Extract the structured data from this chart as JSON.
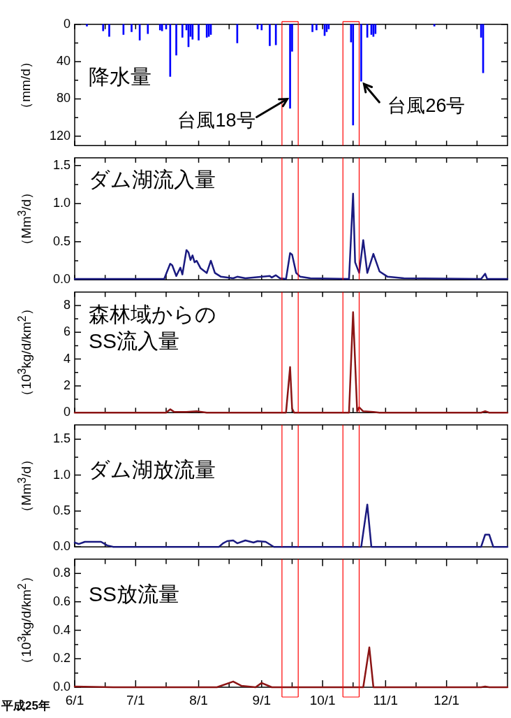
{
  "chart_data": [
    {
      "type": "bar",
      "title": "降水量",
      "ylabel": "（mm/d）",
      "color": "#0000ff",
      "tick_labels": "y",
      "grid": false,
      "x": [
        "--06-07",
        "--06-15",
        "--06-18",
        "--06-25",
        "--06-29",
        "--07-03",
        "--07-07",
        "--07-13",
        "--07-14",
        "--07-16",
        "--07-18",
        "--07-21",
        "--07-24",
        "--07-26",
        "--07-27",
        "--07-28",
        "--07-29",
        "--08-01",
        "--08-05",
        "--08-06",
        "--08-07",
        "--08-20",
        "--08-30",
        "--09-01",
        "--09-05",
        "--09-08",
        "--09-15",
        "--09-16",
        "--09-26",
        "--09-28",
        "--10-02",
        "--10-03",
        "--10-04",
        "--10-15",
        "--10-16",
        "--10-20",
        "--10-23",
        "--10-25",
        "--10-26",
        "--10-27",
        "--11-25",
        "--12-18",
        "--12-19"
      ],
      "values": [
        2,
        7,
        13,
        11,
        8,
        17,
        10,
        6,
        7,
        5,
        56,
        33,
        14,
        6,
        24,
        13,
        16,
        17,
        14,
        13,
        11,
        20,
        5,
        6,
        23,
        22,
        90,
        29,
        8,
        6,
        12,
        8,
        5,
        19,
        108,
        61,
        14,
        11,
        13,
        10,
        2,
        14,
        52
      ],
      "xlim": [
        "--06-01",
        "--12-31"
      ],
      "xticks": [
        {
          "value": "--06-01",
          "label": null
        },
        {
          "value": "--06-16",
          "label": null
        },
        {
          "value": "--07-01",
          "label": null
        },
        {
          "value": "--07-16",
          "label": null
        },
        {
          "value": "--08-01",
          "label": null
        },
        {
          "value": "--08-16",
          "label": null
        },
        {
          "value": "--09-01",
          "label": null
        },
        {
          "value": "--09-16",
          "label": null
        },
        {
          "value": "--10-01",
          "label": null
        },
        {
          "value": "--10-16",
          "label": null
        },
        {
          "value": "--11-01",
          "label": null
        },
        {
          "value": "--11-16",
          "label": null
        },
        {
          "value": "--12-01",
          "label": null
        },
        {
          "value": "--12-16",
          "label": null
        }
      ],
      "ylim": [
        130,
        0
      ],
      "yticks": [
        0,
        {
          "value": 20,
          "label": null
        },
        40,
        {
          "value": 60,
          "label": null
        },
        80,
        {
          "value": 100,
          "label": null
        },
        120
      ],
      "ref_lines": [
        {
          "axis": "x",
          "value": "--09-11",
          "color": "#ff0000"
        },
        {
          "axis": "x",
          "value": "--09-19",
          "color": "#ff0000"
        },
        {
          "axis": "x",
          "value": "--10-11",
          "color": "#ff0000"
        },
        {
          "axis": "x",
          "value": "--10-19",
          "color": "#ff0000"
        }
      ],
      "annotations": [
        {
          "text": "台風18号",
          "x": "--09-15",
          "y": 80
        },
        {
          "text": "台風26号",
          "x": "--10-20",
          "y": 61
        }
      ]
    },
    {
      "type": "line",
      "title": "ダム湖流入量",
      "ylabel": "（Mm$^{3}$/d）",
      "color": "#1a1a80",
      "marker": "none",
      "tick_labels": "y",
      "grid": false,
      "x": [
        "--06-01",
        "--07-15",
        "--07-18",
        "--07-19",
        "--07-21",
        "--07-23",
        "--07-24",
        "--07-26",
        "--07-27",
        "--07-28",
        "--07-29",
        "--07-30",
        "--07-31",
        "--08-02",
        "--08-05",
        "--08-07",
        "--08-09",
        "--08-12",
        "--08-18",
        "--08-20",
        "--08-24",
        "--09-05",
        "--09-06",
        "--09-08",
        "--09-10",
        "--09-13",
        "--09-15",
        "--09-16",
        "--09-18",
        "--09-20",
        "--09-25",
        "--10-14",
        "--10-16",
        "--10-17",
        "--10-19",
        "--10-21",
        "--10-23",
        "--10-26",
        "--10-29",
        "--11-02",
        "--11-10",
        "--12-18",
        "--12-20",
        "--12-21",
        "--12-31"
      ],
      "values": [
        0.01,
        0.01,
        0.21,
        0.19,
        0.05,
        0.16,
        0.07,
        0.39,
        0.36,
        0.26,
        0.32,
        0.23,
        0.25,
        0.15,
        0.09,
        0.25,
        0.09,
        0.04,
        0.02,
        0.04,
        0.02,
        0.05,
        0.03,
        0.06,
        0.02,
        0.01,
        0.35,
        0.33,
        0.09,
        0.04,
        0.02,
        0.01,
        1.13,
        0.23,
        0.09,
        0.52,
        0.09,
        0.34,
        0.11,
        0.04,
        0.02,
        0.01,
        0.08,
        0.01,
        0.01
      ],
      "xlim": [
        "--06-01",
        "--12-31"
      ],
      "xticks": [
        {
          "value": "--06-01",
          "label": null
        },
        {
          "value": "--06-16",
          "label": null
        },
        {
          "value": "--07-01",
          "label": null
        },
        {
          "value": "--07-16",
          "label": null
        },
        {
          "value": "--08-01",
          "label": null
        },
        {
          "value": "--08-16",
          "label": null
        },
        {
          "value": "--09-01",
          "label": null
        },
        {
          "value": "--09-16",
          "label": null
        },
        {
          "value": "--10-01",
          "label": null
        },
        {
          "value": "--10-16",
          "label": null
        },
        {
          "value": "--11-01",
          "label": null
        },
        {
          "value": "--11-16",
          "label": null
        },
        {
          "value": "--12-01",
          "label": null
        },
        {
          "value": "--12-16",
          "label": null
        }
      ],
      "ylim": [
        0,
        1.6
      ],
      "yticks": [
        {
          "value": 0,
          "label": "0.0"
        },
        {
          "value": 0.25,
          "label": null
        },
        {
          "value": 0.5,
          "label": "0.5"
        },
        {
          "value": 0.75,
          "label": null
        },
        {
          "value": 1,
          "label": "1.0"
        },
        {
          "value": 1.25,
          "label": null
        },
        {
          "value": 1.5,
          "label": "1.5"
        }
      ],
      "ref_lines": [
        {
          "axis": "x",
          "value": "--09-11",
          "color": "#ff0000"
        },
        {
          "axis": "x",
          "value": "--09-19",
          "color": "#ff0000"
        },
        {
          "axis": "x",
          "value": "--10-11",
          "color": "#ff0000"
        },
        {
          "axis": "x",
          "value": "--10-19",
          "color": "#ff0000"
        }
      ]
    },
    {
      "type": "line",
      "title": "森林域からの\nSS流入量",
      "ylabel": "（10$^{3}$kg/d/km$^{2}$）",
      "color": "#8b1414",
      "marker": "none",
      "tick_labels": "y",
      "grid": false,
      "x": [
        "--06-01",
        "--07-16",
        "--07-18",
        "--07-20",
        "--07-26",
        "--07-31",
        "--08-05",
        "--09-13",
        "--09-15",
        "--09-16",
        "--09-17",
        "--10-14",
        "--10-16",
        "--10-18",
        "--10-19",
        "--10-21",
        "--10-26",
        "--10-29",
        "--12-18",
        "--12-20",
        "--12-22",
        "--12-31"
      ],
      "values": [
        0,
        0,
        0.25,
        0.05,
        0.05,
        0.1,
        0,
        0,
        3.4,
        0.3,
        0,
        0,
        7.5,
        0.1,
        0.4,
        0.1,
        0.05,
        0,
        0,
        0.1,
        0,
        0
      ],
      "xlim": [
        "--06-01",
        "--12-31"
      ],
      "xticks": [
        {
          "value": "--06-01",
          "label": null
        },
        {
          "value": "--06-16",
          "label": null
        },
        {
          "value": "--07-01",
          "label": null
        },
        {
          "value": "--07-16",
          "label": null
        },
        {
          "value": "--08-01",
          "label": null
        },
        {
          "value": "--08-16",
          "label": null
        },
        {
          "value": "--09-01",
          "label": null
        },
        {
          "value": "--09-16",
          "label": null
        },
        {
          "value": "--10-01",
          "label": null
        },
        {
          "value": "--10-16",
          "label": null
        },
        {
          "value": "--11-01",
          "label": null
        },
        {
          "value": "--11-16",
          "label": null
        },
        {
          "value": "--12-01",
          "label": null
        },
        {
          "value": "--12-16",
          "label": null
        }
      ],
      "ylim": [
        0,
        9
      ],
      "yticks": [
        0,
        {
          "value": 1,
          "label": null
        },
        2,
        {
          "value": 3,
          "label": null
        },
        4,
        {
          "value": 5,
          "label": null
        },
        6,
        {
          "value": 7,
          "label": null
        },
        8
      ],
      "ref_lines": [
        {
          "axis": "x",
          "value": "--09-11",
          "color": "#ff0000"
        },
        {
          "axis": "x",
          "value": "--09-19",
          "color": "#ff0000"
        },
        {
          "axis": "x",
          "value": "--10-11",
          "color": "#ff0000"
        },
        {
          "axis": "x",
          "value": "--10-19",
          "color": "#ff0000"
        }
      ]
    },
    {
      "type": "line",
      "title": "ダム湖放流量",
      "ylabel": "（Mm$^{3}$/d）",
      "color": "#1a1a80",
      "marker": "none",
      "tick_labels": "y",
      "grid": false,
      "x": [
        "--06-01",
        "--06-03",
        "--06-06",
        "--06-14",
        "--06-17",
        "--06-20",
        "--08-11",
        "--08-13",
        "--08-15",
        "--08-18",
        "--08-20",
        "--08-24",
        "--08-28",
        "--08-30",
        "--09-03",
        "--09-07",
        "--10-20",
        "--10-23",
        "--10-25",
        "--12-18",
        "--12-20",
        "--12-22",
        "--12-24",
        "--12-31"
      ],
      "values": [
        0.06,
        0.04,
        0.07,
        0.07,
        0.02,
        0,
        0,
        0.05,
        0.08,
        0.09,
        0.05,
        0.09,
        0.06,
        0.08,
        0.07,
        0,
        0,
        0.59,
        0,
        0,
        0.17,
        0.17,
        0,
        0
      ],
      "xlim": [
        "--06-01",
        "--12-31"
      ],
      "xticks": [
        {
          "value": "--06-01",
          "label": null
        },
        {
          "value": "--06-16",
          "label": null
        },
        {
          "value": "--07-01",
          "label": null
        },
        {
          "value": "--07-16",
          "label": null
        },
        {
          "value": "--08-01",
          "label": null
        },
        {
          "value": "--08-16",
          "label": null
        },
        {
          "value": "--09-01",
          "label": null
        },
        {
          "value": "--09-16",
          "label": null
        },
        {
          "value": "--10-01",
          "label": null
        },
        {
          "value": "--10-16",
          "label": null
        },
        {
          "value": "--11-01",
          "label": null
        },
        {
          "value": "--11-16",
          "label": null
        },
        {
          "value": "--12-01",
          "label": null
        },
        {
          "value": "--12-16",
          "label": null
        }
      ],
      "ylim": [
        0,
        1.7
      ],
      "yticks": [
        {
          "value": 0,
          "label": "0.0"
        },
        {
          "value": 0.25,
          "label": null
        },
        {
          "value": 0.5,
          "label": "0.5"
        },
        {
          "value": 0.75,
          "label": null
        },
        {
          "value": 1,
          "label": "1.0"
        },
        {
          "value": 1.25,
          "label": null
        },
        {
          "value": 1.5,
          "label": "1.5"
        }
      ],
      "ref_lines": [
        {
          "axis": "x",
          "value": "--09-11",
          "color": "#ff0000"
        },
        {
          "axis": "x",
          "value": "--09-19",
          "color": "#ff0000"
        },
        {
          "axis": "x",
          "value": "--10-11",
          "color": "#ff0000"
        },
        {
          "axis": "x",
          "value": "--10-19",
          "color": "#ff0000"
        }
      ]
    },
    {
      "type": "line",
      "title": "SS放流量",
      "ylabel": "（10$^{3}$kg/d/km$^{2}$）",
      "color": "#8b1414",
      "marker": "none",
      "grid": false,
      "x": [
        "--06-01",
        "--06-20",
        "--08-10",
        "--08-18",
        "--08-22",
        "--08-29",
        "--09-01",
        "--09-06",
        "--10-21",
        "--10-24",
        "--10-26",
        "--12-18",
        "--12-20",
        "--12-22",
        "--12-31"
      ],
      "values": [
        0.005,
        0,
        0,
        0.04,
        0.01,
        0,
        0.03,
        0,
        0,
        0.28,
        0,
        0,
        0.005,
        0,
        0
      ],
      "xlim": [
        "--06-01",
        "--12-31"
      ],
      "xticks": [
        {
          "value": "--06-01",
          "label": "6/1"
        },
        {
          "value": "--06-16",
          "label": null
        },
        {
          "value": "--07-01",
          "label": "7/1"
        },
        {
          "value": "--07-16",
          "label": null
        },
        {
          "value": "--08-01",
          "label": "8/1"
        },
        {
          "value": "--08-16",
          "label": null
        },
        {
          "value": "--09-01",
          "label": "9/1"
        },
        {
          "value": "--09-16",
          "label": null
        },
        {
          "value": "--10-01",
          "label": "10/1"
        },
        {
          "value": "--10-16",
          "label": null
        },
        {
          "value": "--11-01",
          "label": "11/1"
        },
        {
          "value": "--11-16",
          "label": null
        },
        {
          "value": "--12-01",
          "label": "12/1"
        },
        {
          "value": "--12-16",
          "label": null
        }
      ],
      "ylim": [
        0,
        0.9
      ],
      "yticks": [
        {
          "value": 0,
          "label": "0.0"
        },
        {
          "value": 0.1,
          "label": null
        },
        {
          "value": 0.2,
          "label": "0.2"
        },
        {
          "value": 0.3,
          "label": null
        },
        {
          "value": 0.4,
          "label": "0.4"
        },
        {
          "value": 0.5,
          "label": null
        },
        {
          "value": 0.6,
          "label": "0.6"
        },
        {
          "value": 0.7,
          "label": null
        },
        {
          "value": 0.8,
          "label": "0.8"
        }
      ],
      "ref_lines": [
        {
          "axis": "x",
          "value": "--09-11",
          "color": "#ff0000"
        },
        {
          "axis": "x",
          "value": "--09-19",
          "color": "#ff0000"
        },
        {
          "axis": "x",
          "value": "--10-11",
          "color": "#ff0000"
        },
        {
          "axis": "x",
          "value": "--10-19",
          "color": "#ff0000"
        }
      ],
      "annotations": [
        "平成25年"
      ]
    }
  ]
}
